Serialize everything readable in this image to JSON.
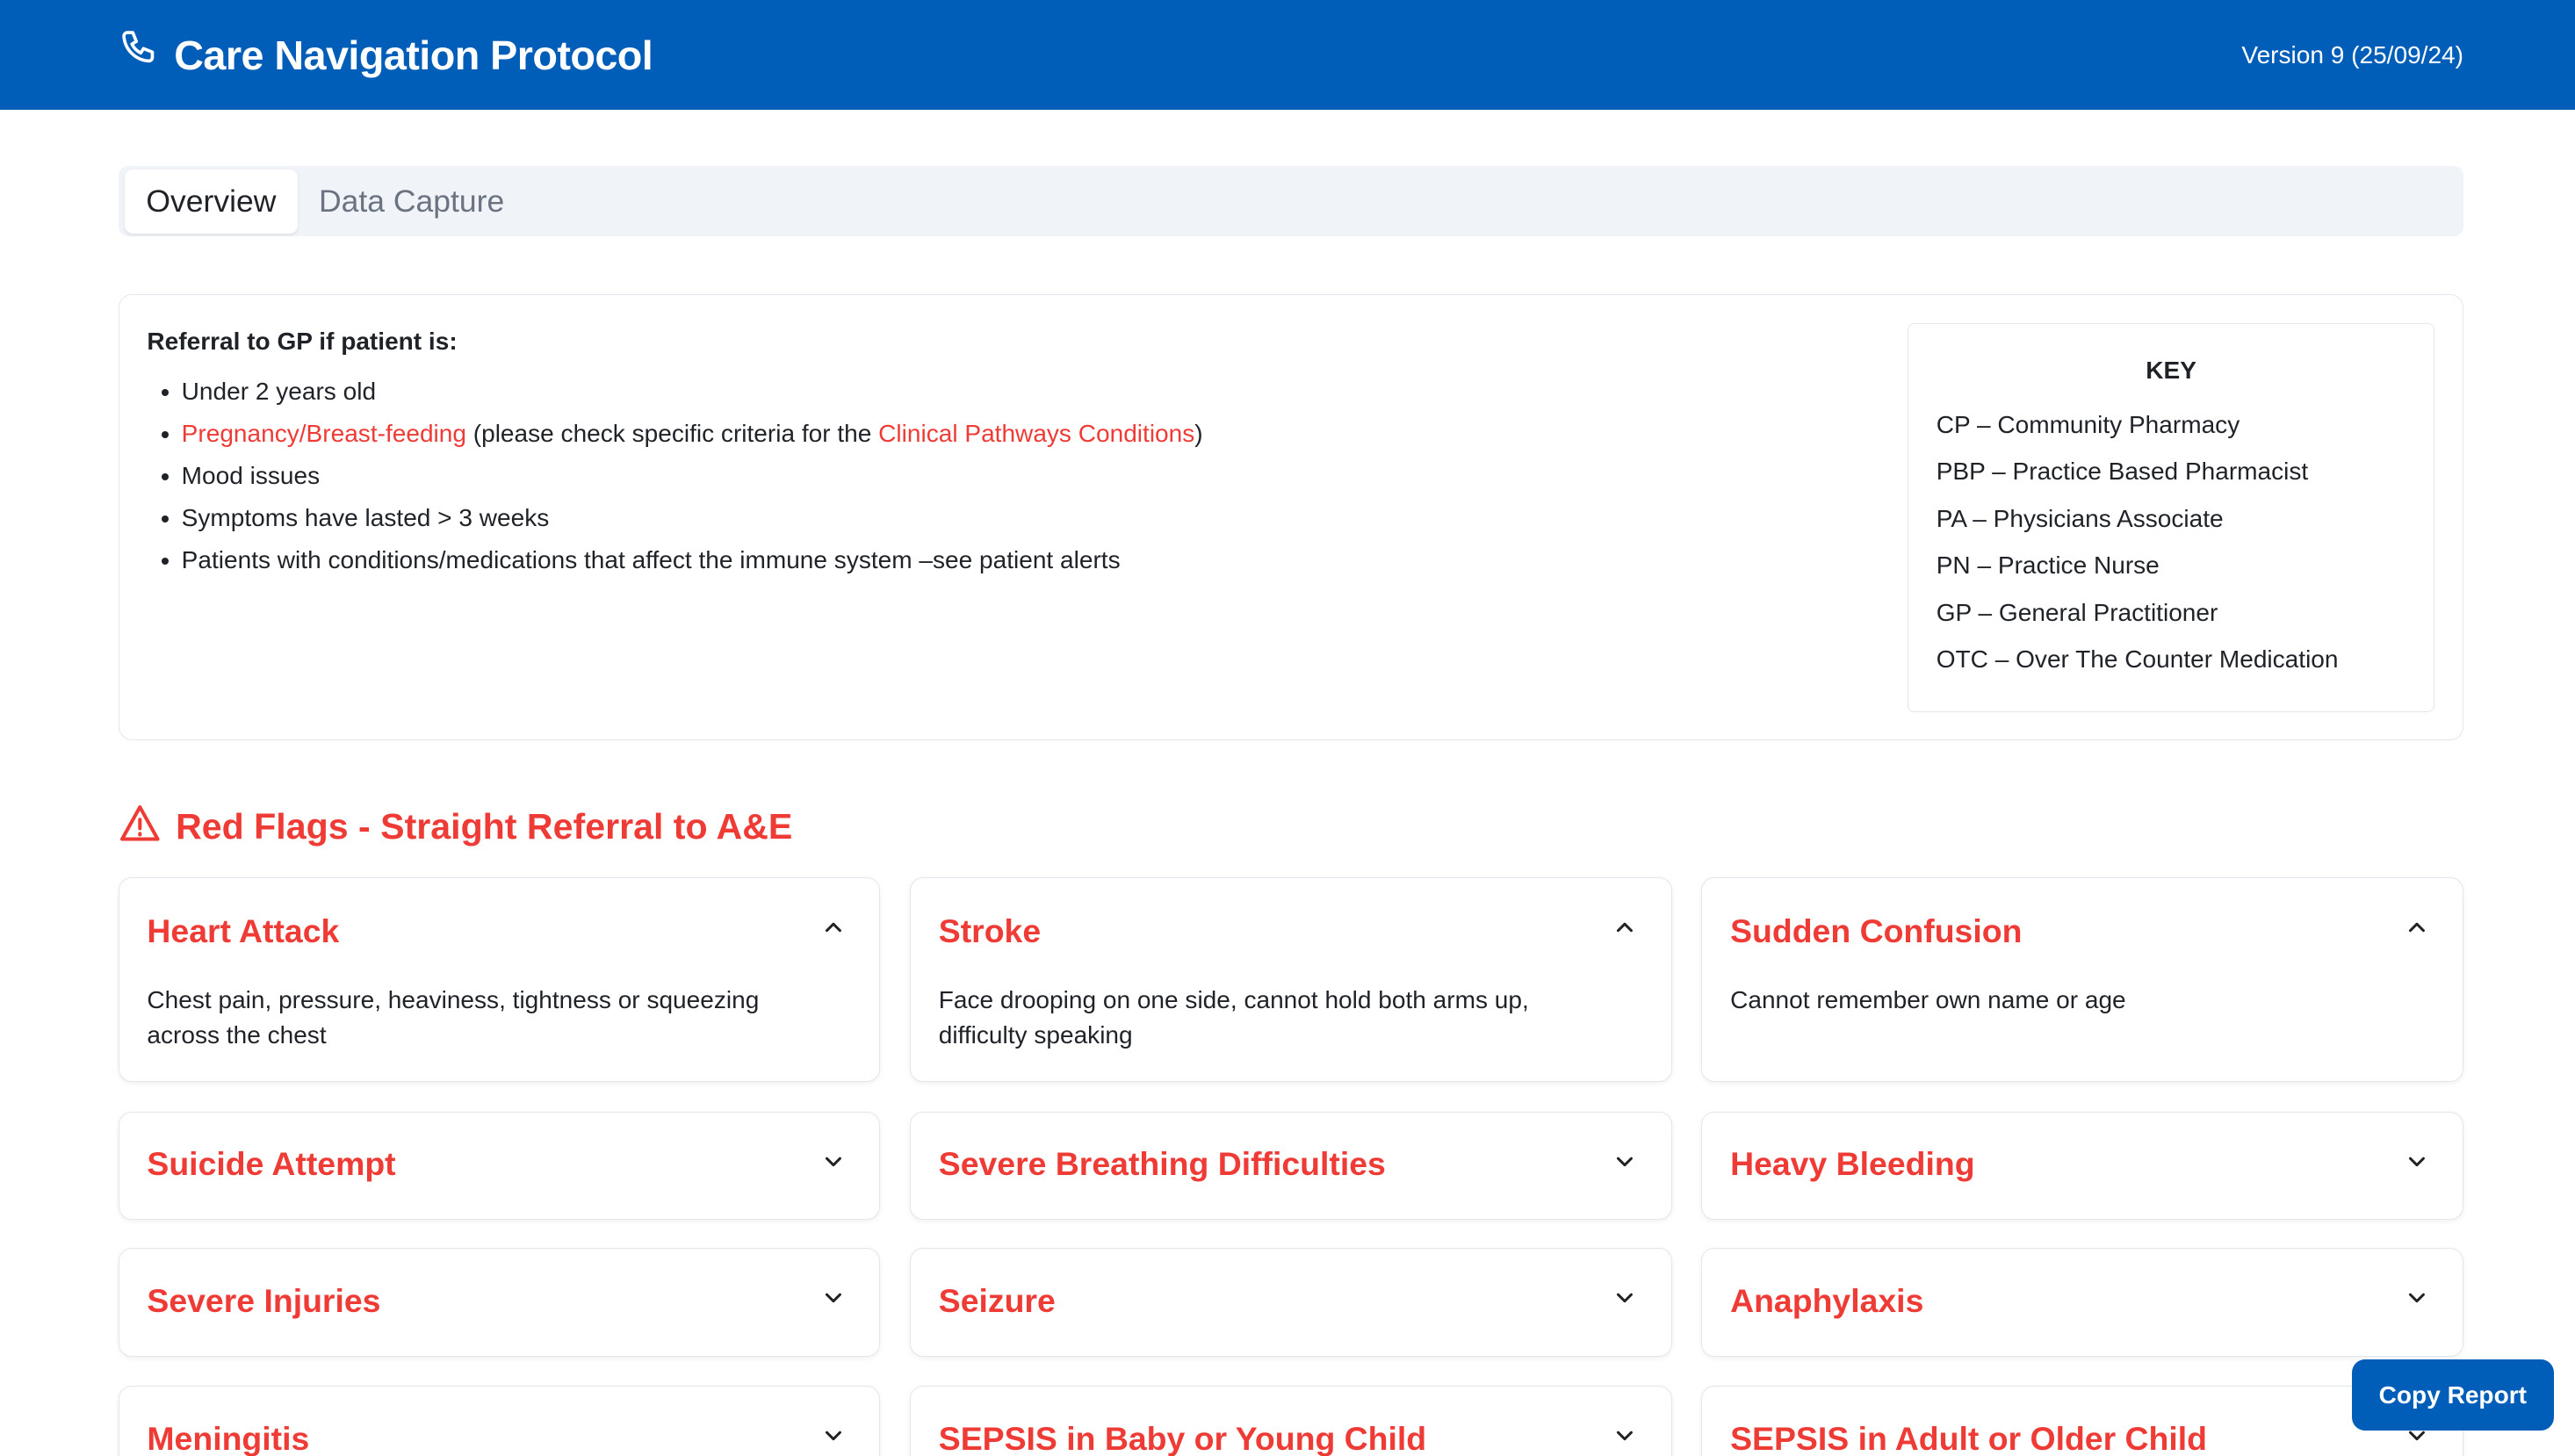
{
  "header": {
    "title": "Care Navigation Protocol",
    "version": "Version 9 (25/09/24)",
    "icon": "phone-icon"
  },
  "tabs": [
    {
      "label": "Overview",
      "active": true
    },
    {
      "label": "Data Capture",
      "active": false
    }
  ],
  "referral": {
    "heading": "Referral to GP if patient is:",
    "items": [
      {
        "text": "Under 2 years old"
      },
      {
        "link1": "Pregnancy/Breast-feeding",
        "mid": " (please check specific criteria for the ",
        "link2": "Clinical Pathways Conditions",
        "end": ")"
      },
      {
        "text": "Mood issues"
      },
      {
        "text": "Symptoms have lasted > 3 weeks"
      },
      {
        "text": "Patients with conditions/medications that affect the immune system –see patient alerts"
      }
    ]
  },
  "key": {
    "title": "KEY",
    "items": [
      "CP – Community Pharmacy",
      "PBP – Practice Based Pharmacist",
      "PA – Physicians Associate",
      "PN – Practice Nurse",
      "GP – General Practitioner",
      "OTC – Over The Counter Medication"
    ]
  },
  "red_flags": {
    "title": "Red Flags - Straight Referral to A&E",
    "cards": [
      {
        "title": "Heart Attack",
        "expanded": true,
        "desc": "Chest pain, pressure, heaviness, tightness or squeezing across the chest"
      },
      {
        "title": "Stroke",
        "expanded": true,
        "desc": "Face drooping on one side, cannot hold both arms up, difficulty speaking"
      },
      {
        "title": "Sudden Confusion",
        "expanded": true,
        "desc": "Cannot remember own name or age"
      },
      {
        "title": "Suicide Attempt",
        "expanded": false
      },
      {
        "title": "Severe Breathing Difficulties",
        "expanded": false
      },
      {
        "title": "Heavy Bleeding",
        "expanded": false
      },
      {
        "title": "Severe Injuries",
        "expanded": false
      },
      {
        "title": "Seizure",
        "expanded": false
      },
      {
        "title": "Anaphylaxis",
        "expanded": false
      },
      {
        "title": "Meningitis",
        "expanded": false
      },
      {
        "title": "SEPSIS in Baby or Young Child",
        "expanded": false
      },
      {
        "title": "SEPSIS in Adult or Older Child",
        "expanded": false
      }
    ]
  },
  "copy_button": "Copy Report",
  "colors": {
    "brand": "#005EB8",
    "red": "#ef3b36"
  }
}
